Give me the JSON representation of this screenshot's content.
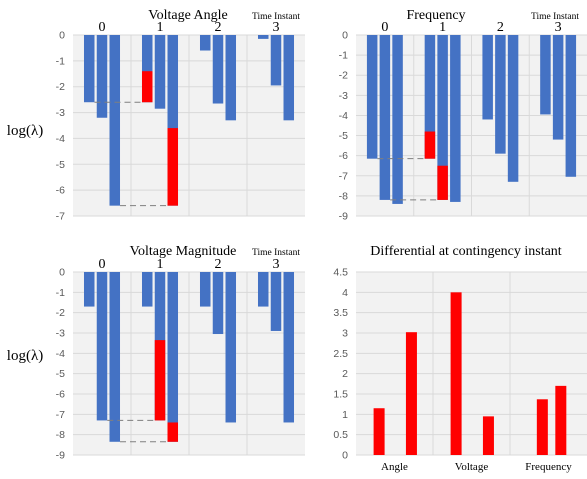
{
  "colors": {
    "blue": "#4472C4",
    "red": "#FF0000",
    "plot_bg": "#F2F2F2",
    "grid": "#D9D9D9",
    "dash": "#7F7F7F"
  },
  "ylabel": "log(λ)",
  "time_instant_label": "Time Instant",
  "chart_data": [
    {
      "type": "bar",
      "title": "Voltage Angle",
      "ylim": [
        -7,
        0
      ],
      "yticks": [
        0,
        -1,
        -2,
        -3,
        -4,
        -5,
        -6,
        -7
      ],
      "groups": [
        "0",
        "1",
        "2",
        "3"
      ],
      "bars": [
        {
          "group": 0,
          "value": -2.6
        },
        {
          "group": 0,
          "value": -3.2
        },
        {
          "group": 0,
          "value": -6.6
        },
        {
          "group": 1,
          "value": -2.6,
          "highlight": [
            -1.4,
            -2.6
          ]
        },
        {
          "group": 1,
          "value": -2.85
        },
        {
          "group": 1,
          "value": -6.6,
          "highlight": [
            -3.6,
            -6.6
          ]
        },
        {
          "group": 2,
          "value": -0.6
        },
        {
          "group": 2,
          "value": -2.65
        },
        {
          "group": 2,
          "value": -3.3
        },
        {
          "group": 3,
          "value": -0.15
        },
        {
          "group": 3,
          "value": -1.95
        },
        {
          "group": 3,
          "value": -3.3
        }
      ],
      "reference_lines": [
        -2.6,
        -6.6
      ]
    },
    {
      "type": "bar",
      "title": "Frequency",
      "ylim": [
        -9,
        0
      ],
      "yticks": [
        0,
        -1,
        -2,
        -3,
        -4,
        -5,
        -6,
        -7,
        -8,
        -9
      ],
      "groups": [
        "0",
        "1",
        "2",
        "3"
      ],
      "bars": [
        {
          "group": 0,
          "value": -6.15
        },
        {
          "group": 0,
          "value": -8.2
        },
        {
          "group": 0,
          "value": -8.4
        },
        {
          "group": 1,
          "value": -6.15,
          "highlight": [
            -4.8,
            -6.15
          ]
        },
        {
          "group": 1,
          "value": -8.2,
          "highlight": [
            -6.5,
            -8.2
          ]
        },
        {
          "group": 1,
          "value": -8.3
        },
        {
          "group": 2,
          "value": -4.2
        },
        {
          "group": 2,
          "value": -5.9
        },
        {
          "group": 2,
          "value": -7.3
        },
        {
          "group": 3,
          "value": -3.95
        },
        {
          "group": 3,
          "value": -5.2
        },
        {
          "group": 3,
          "value": -7.05
        }
      ],
      "reference_lines": [
        -6.15,
        -8.2
      ]
    },
    {
      "type": "bar",
      "title": "Voltage Magnitude",
      "ylim": [
        -9,
        0
      ],
      "yticks": [
        0,
        -1,
        -2,
        -3,
        -4,
        -5,
        -6,
        -7,
        -8,
        -9
      ],
      "groups": [
        "0",
        "1",
        "2",
        "3"
      ],
      "bars": [
        {
          "group": 0,
          "value": -1.7
        },
        {
          "group": 0,
          "value": -7.3
        },
        {
          "group": 0,
          "value": -8.35
        },
        {
          "group": 1,
          "value": -1.7
        },
        {
          "group": 1,
          "value": -7.3,
          "highlight": [
            -3.35,
            -7.3
          ]
        },
        {
          "group": 1,
          "value": -8.35,
          "highlight": [
            -7.4,
            -8.35
          ]
        },
        {
          "group": 2,
          "value": -1.7
        },
        {
          "group": 2,
          "value": -3.05
        },
        {
          "group": 2,
          "value": -7.4
        },
        {
          "group": 3,
          "value": -1.7
        },
        {
          "group": 3,
          "value": -2.9
        },
        {
          "group": 3,
          "value": -7.4
        }
      ],
      "reference_lines": [
        -7.3,
        -8.35
      ]
    },
    {
      "type": "bar",
      "title": "Differential at contingency instant",
      "ylim": [
        0,
        4.5
      ],
      "yticks": [
        0,
        0.5,
        1,
        1.5,
        2,
        2.5,
        3,
        3.5,
        4,
        4.5
      ],
      "categories": [
        "Angle",
        "Voltage",
        "Frequency"
      ],
      "values": [
        [
          1.15,
          3.02
        ],
        [
          4.0,
          0.95
        ],
        [
          1.37,
          1.7
        ]
      ]
    }
  ]
}
